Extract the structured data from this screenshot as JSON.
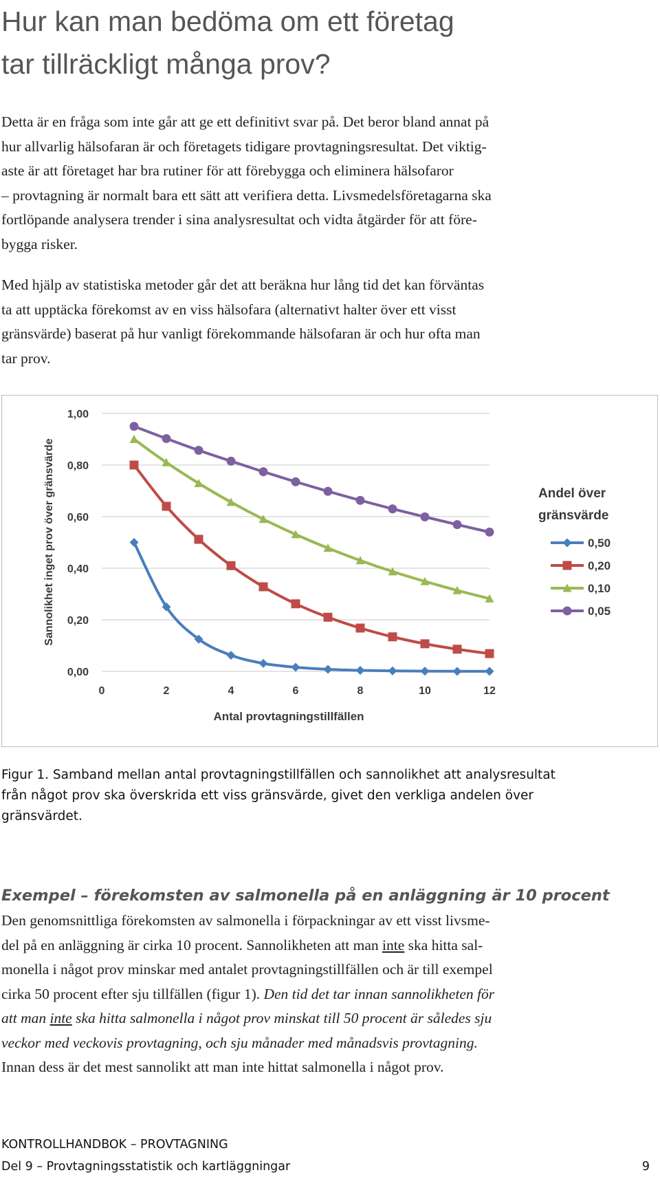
{
  "heading": {
    "line1": "Hur kan man bedöma om ett företag",
    "line2": "tar tillräckligt många prov?"
  },
  "paragraph1": {
    "lines": [
      "Detta är en fråga som inte går att ge ett definitivt svar på. Det beror bland annat på",
      "hur allvarlig hälsofaran är och företagets tidigare provtagningsresultat. Det viktig-",
      "aste är att företaget har bra rutiner för att förebygga och eliminera hälsofaror",
      "– provtagning är normalt bara ett sätt att verifiera detta. Livsmedelsföretagarna ska",
      "fortlöpande analysera trender i sina analysresultat och vidta åtgärder för att före-",
      "bygga risker."
    ]
  },
  "paragraph2": {
    "lines": [
      "Med hjälp av statistiska metoder går det att beräkna hur lång tid det kan förväntas",
      "ta att upptäcka förekomst av en viss hälsofara (alternativt halter över ett visst",
      "gränsvärde) baserat på hur vanligt förekommande hälsofaran är och hur ofta man",
      "tar prov."
    ]
  },
  "chart_data": {
    "type": "line",
    "xlabel": "Antal provtagningstillfällen",
    "ylabel": "Sannolikhet  inget prov över gränsvärde",
    "xlim": [
      0,
      12
    ],
    "ylim": [
      0,
      1
    ],
    "x_ticks": [
      "0",
      "2",
      "4",
      "6",
      "8",
      "10",
      "12"
    ],
    "y_ticks": [
      "0,00",
      "0,20",
      "0,40",
      "0,60",
      "0,80",
      "1,00"
    ],
    "grid": "horizontal",
    "legend_title": [
      "Andel över",
      "gränsvärde"
    ],
    "legend_position": "right",
    "x": [
      1,
      2,
      3,
      4,
      5,
      6,
      7,
      8,
      9,
      10,
      11,
      12
    ],
    "series": [
      {
        "name": "0,50",
        "marker": "diamond",
        "color": "#4a7ebb",
        "values": [
          0.5,
          0.25,
          0.125,
          0.0625,
          0.031,
          0.016,
          0.008,
          0.004,
          0.002,
          0.001,
          0.0005,
          0.0002
        ]
      },
      {
        "name": "0,20",
        "marker": "square",
        "color": "#be4b48",
        "values": [
          0.8,
          0.64,
          0.512,
          0.41,
          0.328,
          0.262,
          0.21,
          0.168,
          0.134,
          0.107,
          0.086,
          0.069
        ]
      },
      {
        "name": "0,10",
        "marker": "triangle",
        "color": "#98b954",
        "values": [
          0.9,
          0.81,
          0.729,
          0.656,
          0.59,
          0.531,
          0.478,
          0.43,
          0.387,
          0.349,
          0.314,
          0.282
        ]
      },
      {
        "name": "0,05",
        "marker": "circle",
        "color": "#7d60a0",
        "values": [
          0.95,
          0.9025,
          0.857,
          0.815,
          0.774,
          0.735,
          0.698,
          0.663,
          0.63,
          0.599,
          0.569,
          0.54
        ]
      }
    ]
  },
  "caption": {
    "lines": [
      "Figur 1. Samband mellan antal provtagningstillfällen och sannolikhet att analysresultat",
      "från något prov ska överskrida ett viss gränsvärde, givet den verkliga andelen över",
      "gränsvärdet."
    ]
  },
  "example": {
    "title": "Exempel – förekomsten av salmonella på en anläggning är 10 procent",
    "l1": "Den genomsnittliga förekomsten av salmonella i förpackningar av ett visst livsme-",
    "l2": "del på en anläggning är cirka 10 procent. Sannolikheten att man ",
    "l2u": "inte",
    "l2b": " ska hitta sal-",
    "l3": "monella i något prov minskar med antalet provtagningstillfällen och är till exempel",
    "l4a": "cirka 50 procent efter sju tillfällen (figur 1). ",
    "l4b": "Den tid det tar innan sannolikheten för",
    "l5a": "att man ",
    "l5u": "inte",
    "l5b": " ska hitta salmonella i något prov minskat till 50 procent är således sju",
    "l6": "veckor med veckovis provtagning, och sju månader med månadsvis provtagning.",
    "l7": "Innan dess är det mest sannolikt att man inte hittat salmonella i något prov."
  },
  "footer": {
    "line1": "KONTROLLHANDBOK – PROVTAGNING",
    "line2": "Del 9 – Provtagningsstatistik och kartläggningar",
    "page": "9"
  }
}
